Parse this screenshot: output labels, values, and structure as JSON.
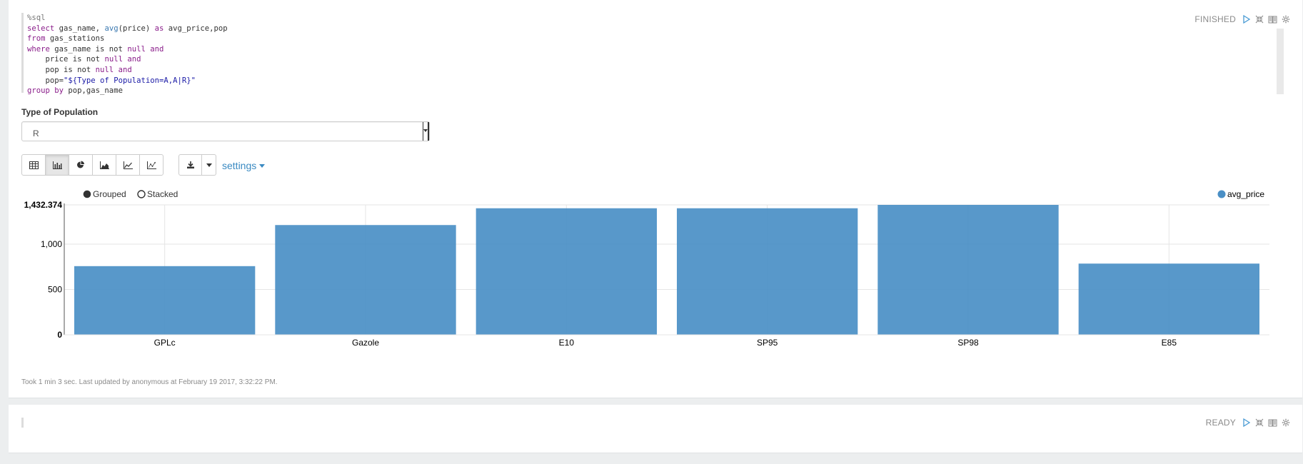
{
  "paragraph1": {
    "code_lines": [
      [
        {
          "t": "%sql",
          "c": "cmt"
        }
      ],
      [
        {
          "t": "select",
          "c": "kw"
        },
        {
          "t": " gas_name, ",
          "c": ""
        },
        {
          "t": "avg",
          "c": "fn"
        },
        {
          "t": "(price) ",
          "c": ""
        },
        {
          "t": "as",
          "c": "kw"
        },
        {
          "t": " avg_price,pop",
          "c": ""
        }
      ],
      [
        {
          "t": "from",
          "c": "kw"
        },
        {
          "t": " gas_stations",
          "c": ""
        }
      ],
      [
        {
          "t": "where",
          "c": "kw"
        },
        {
          "t": " gas_name is not ",
          "c": ""
        },
        {
          "t": "null",
          "c": "nl"
        },
        {
          "t": " ",
          "c": ""
        },
        {
          "t": "and",
          "c": "kw"
        }
      ],
      [
        {
          "t": "    price is not ",
          "c": ""
        },
        {
          "t": "null",
          "c": "nl"
        },
        {
          "t": " ",
          "c": ""
        },
        {
          "t": "and",
          "c": "kw"
        }
      ],
      [
        {
          "t": "    pop is not ",
          "c": ""
        },
        {
          "t": "null",
          "c": "nl"
        },
        {
          "t": " ",
          "c": ""
        },
        {
          "t": "and",
          "c": "kw"
        }
      ],
      [
        {
          "t": "    pop=",
          "c": ""
        },
        {
          "t": "\"${Type of Population=A,A|R}\"",
          "c": "str"
        }
      ],
      [
        {
          "t": "group by",
          "c": "kw"
        },
        {
          "t": " pop,gas_name",
          "c": ""
        }
      ]
    ],
    "status": "FINISHED",
    "form": {
      "label": "Type of Population",
      "selected": "R"
    },
    "toolbar": {
      "buttons": [
        "table-icon",
        "bar-chart-icon",
        "pie-chart-icon",
        "area-chart-icon",
        "line-chart-icon",
        "scatter-chart-icon"
      ],
      "active_index": 1,
      "download_icon": "download-icon",
      "settings_label": "settings"
    },
    "chart_options": {
      "grouped_label": "Grouped",
      "stacked_label": "Stacked",
      "mode": "grouped"
    },
    "footer": "Took 1 min 3 sec. Last updated by anonymous at February 19 2017, 3:32:22 PM."
  },
  "paragraph2": {
    "status": "READY"
  },
  "colors": {
    "bar": "#4a8fc5",
    "link": "#3a8ac2",
    "status_icon": "#4a9bd4"
  },
  "chart_data": {
    "type": "bar",
    "categories": [
      "GPLc",
      "Gazole",
      "E10",
      "SP95",
      "SP98",
      "E85"
    ],
    "series": [
      {
        "name": "avg_price",
        "values": [
          757,
          1210,
          1395,
          1395,
          1432.374,
          785
        ]
      }
    ],
    "ylim": [
      0,
      1432.374
    ],
    "yticks": [
      0,
      500,
      1000,
      1432.374
    ],
    "ytick_labels": [
      "0",
      "500",
      "1,000",
      "1,432.374"
    ],
    "legend_position": "top-right",
    "grid": true
  }
}
